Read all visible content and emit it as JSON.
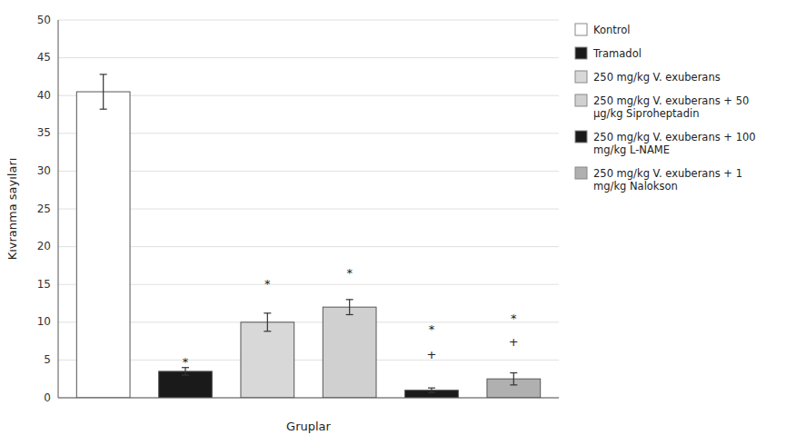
{
  "chart_data": {
    "type": "bar",
    "categories": [
      "Kontrol",
      "Tramadol",
      "250 mg/kg V. exuberans",
      "250 mg/kg V. exuberans + 50\nμg/kg Siproheptadin",
      "250 mg/kg V. exuberans + 100\nmg/kg L-NAME",
      "250 mg/kg V. exuberans + 1\nmg/kg Nalokson"
    ],
    "values": [
      40.5,
      3.5,
      10.0,
      12.0,
      1.0,
      2.5
    ],
    "errors": [
      2.3,
      0.5,
      1.2,
      1.0,
      0.3,
      0.8
    ],
    "colors": [
      "#ffffff",
      "#1a1a1a",
      "#d8d8d8",
      "#d0d0d0",
      "#1a1a1a",
      "#b0b0b0"
    ],
    "annotations": [
      {
        "x": 1,
        "y": 4.2,
        "text": "*"
      },
      {
        "x": 2,
        "y": 14.5,
        "text": "*"
      },
      {
        "x": 3,
        "y": 16.0,
        "text": "*"
      },
      {
        "x": 4,
        "y": 8.5,
        "text": "*"
      },
      {
        "x": 4,
        "y": 5.2,
        "text": "+"
      },
      {
        "x": 5,
        "y": 10.0,
        "text": "*"
      },
      {
        "x": 5,
        "y": 6.8,
        "text": "+"
      }
    ],
    "ylabel": "Kıvranma sayıları",
    "xlabel": "Gruplar",
    "ylim": [
      0,
      50
    ],
    "yticks": [
      0,
      5,
      10,
      15,
      20,
      25,
      30,
      35,
      40,
      45,
      50
    ],
    "grid": true,
    "legend": "right",
    "tick_labels": "y"
  }
}
